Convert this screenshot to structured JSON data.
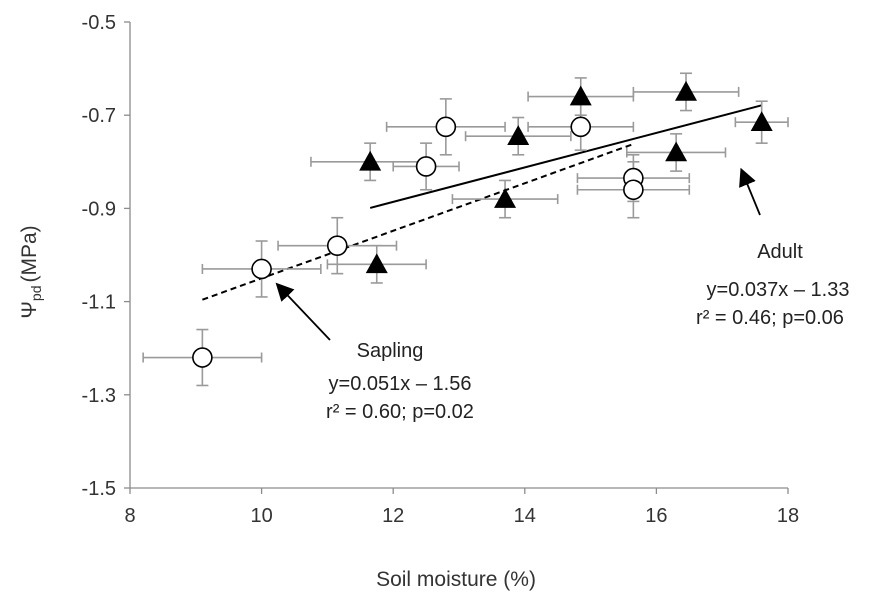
{
  "chart_data": {
    "type": "scatter",
    "xlabel": "Soil moisture (%)",
    "ylabel_main": "Ψ",
    "ylabel_sub": "pd",
    "ylabel_unit": "(MPa)",
    "xlim": [
      8,
      18
    ],
    "ylim": [
      -1.5,
      -0.5
    ],
    "x_ticks": [
      "8",
      "10",
      "12",
      "14",
      "16",
      "18"
    ],
    "y_ticks": [
      "-0.5",
      "-0.7",
      "-0.9",
      "-1.1",
      "-1.3",
      "-1.5"
    ],
    "grid": false,
    "series": [
      {
        "key": "sapling",
        "marker": "open-circle",
        "points": [
          {
            "x": 9.1,
            "y": -1.22,
            "xerr": 0.9,
            "yerr": 0.06
          },
          {
            "x": 10.0,
            "y": -1.03,
            "xerr": 0.9,
            "yerr": 0.06
          },
          {
            "x": 11.15,
            "y": -0.98,
            "xerr": 0.9,
            "yerr": 0.06
          },
          {
            "x": 12.5,
            "y": -0.81,
            "xerr": 0.5,
            "yerr": 0.05
          },
          {
            "x": 12.8,
            "y": -0.725,
            "xerr": 0.9,
            "yerr": 0.06
          },
          {
            "x": 14.85,
            "y": -0.725,
            "xerr": 0.8,
            "yerr": 0.05
          },
          {
            "x": 15.65,
            "y": -0.835,
            "xerr": 0.85,
            "yerr": 0.05
          },
          {
            "x": 15.65,
            "y": -0.86,
            "xerr": 0.85,
            "yerr": 0.06
          }
        ],
        "fit": {
          "slope": 0.051,
          "intercept": -1.56,
          "x_range": [
            9.1,
            15.65
          ],
          "style": "dashed"
        }
      },
      {
        "key": "adult",
        "marker": "filled-triangle",
        "points": [
          {
            "x": 11.65,
            "y": -0.8,
            "xerr": 0.9,
            "yerr": 0.04
          },
          {
            "x": 11.75,
            "y": -1.02,
            "xerr": 0.75,
            "yerr": 0.04
          },
          {
            "x": 13.7,
            "y": -0.88,
            "xerr": 0.8,
            "yerr": 0.04
          },
          {
            "x": 13.9,
            "y": -0.745,
            "xerr": 0.8,
            "yerr": 0.04
          },
          {
            "x": 14.85,
            "y": -0.66,
            "xerr": 0.8,
            "yerr": 0.04
          },
          {
            "x": 16.3,
            "y": -0.78,
            "xerr": 0.75,
            "yerr": 0.04
          },
          {
            "x": 16.45,
            "y": -0.65,
            "xerr": 0.8,
            "yerr": 0.04
          },
          {
            "x": 17.6,
            "y": -0.715,
            "xerr": 0.4,
            "yerr": 0.045
          }
        ],
        "fit": {
          "slope": 0.037,
          "intercept": -1.33,
          "x_range": [
            11.65,
            17.6
          ],
          "style": "solid"
        }
      }
    ],
    "annotations": [
      {
        "key": "adult",
        "lines": [
          "Adult",
          "y=0.037x – 1.33",
          "r² = 0.46; p=0.06"
        ],
        "arrow_to": {
          "x": 17.3,
          "y": -0.82
        }
      },
      {
        "key": "sapling",
        "lines": [
          "Sapling",
          "y=0.051x – 1.56",
          "r² = 0.60; p=0.02"
        ],
        "arrow_to": {
          "x": 10.25,
          "y": -1.065
        }
      }
    ]
  }
}
